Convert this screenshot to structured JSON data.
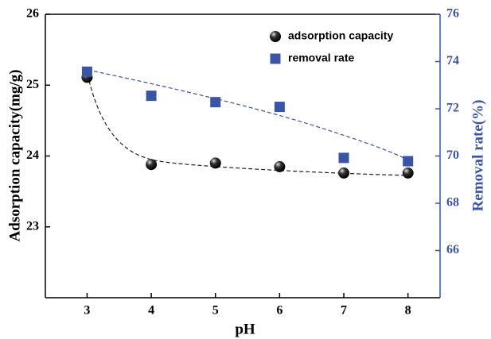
{
  "chart_data": {
    "type": "scatter",
    "x_label": "pH",
    "y_label": "Adsorption capacity(mg/g)",
    "y2_label": "Removal rate(%)",
    "x": [
      3,
      4,
      5,
      6,
      7,
      8
    ],
    "xlim": [
      2.35,
      8.5
    ],
    "xticks": [
      3,
      4,
      5,
      6,
      7,
      8
    ],
    "ylim": [
      22,
      26
    ],
    "yticks": [
      23,
      24,
      25,
      26
    ],
    "y2lim": [
      64,
      76
    ],
    "y2ticks": [
      66,
      68,
      70,
      72,
      74,
      76
    ],
    "legend": "upper right",
    "series": [
      {
        "name": "adsorption capacity",
        "color": "#111111",
        "marker": "circle",
        "values": [
          25.11,
          23.88,
          23.9,
          23.85,
          23.76,
          23.76
        ]
      },
      {
        "name": "removal rate",
        "color": "#3b55a5",
        "marker": "square",
        "axis": "y2",
        "values": [
          73.57,
          72.55,
          72.28,
          72.08,
          69.92,
          69.78
        ]
      }
    ]
  }
}
